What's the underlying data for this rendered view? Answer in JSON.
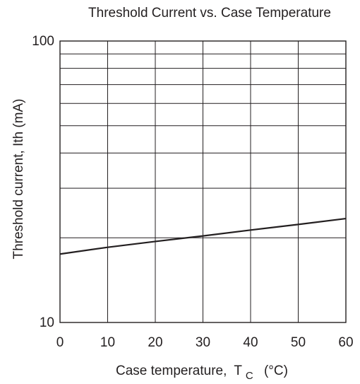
{
  "chart_data": {
    "type": "line",
    "title": "Threshold Current vs. Case Temperature",
    "xlabel": "Case temperature,",
    "xlabel_symbol": "T",
    "xlabel_subscript": "C",
    "xlabel_unit": "(°C)",
    "ylabel": "Threshold current,  Ith  (mA)",
    "x_scale": "linear",
    "y_scale": "log",
    "xlim": [
      0,
      60
    ],
    "ylim": [
      10,
      100
    ],
    "x_ticks": [
      0,
      10,
      20,
      30,
      40,
      50,
      60
    ],
    "x_tick_labels": [
      "0",
      "10",
      "20",
      "30",
      "40",
      "50",
      "60"
    ],
    "y_tick_labels": [
      {
        "value": 100,
        "label": "100"
      },
      {
        "value": 10,
        "label": "10"
      }
    ],
    "y_minor_gridlines": [
      20,
      30,
      40,
      50,
      60,
      70,
      80,
      90
    ],
    "grid": true,
    "legend": "none",
    "line_color": "#231f20",
    "series": [
      {
        "x": [
          0,
          10,
          20,
          30,
          40,
          50,
          60
        ],
        "y": [
          17.5,
          18.5,
          19.4,
          20.3,
          21.3,
          22.3,
          23.4
        ]
      }
    ]
  }
}
